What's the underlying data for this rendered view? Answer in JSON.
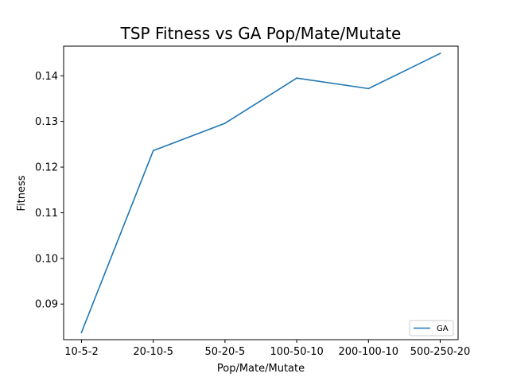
{
  "chart_data": {
    "type": "line",
    "title": "TSP Fitness vs GA Pop/Mate/Mutate",
    "xlabel": "Pop/Mate/Mutate",
    "ylabel": "Fitness",
    "categories": [
      "10-5-2",
      "20-10-5",
      "50-20-5",
      "100-50-10",
      "200-100-10",
      "500-250-20"
    ],
    "series": [
      {
        "name": "GA",
        "values": [
          0.0838,
          0.1236,
          0.1296,
          0.1395,
          0.1372,
          0.1449
        ],
        "color": "#1f77b4"
      }
    ],
    "ylim": [
      0.0822,
      0.1465
    ],
    "yticks": [
      0.09,
      0.1,
      0.11,
      0.12,
      0.13,
      0.14
    ],
    "ytick_labels": [
      "0.09",
      "0.10",
      "0.11",
      "0.12",
      "0.13",
      "0.14"
    ],
    "grid": false,
    "legend_position": "lower-right"
  }
}
